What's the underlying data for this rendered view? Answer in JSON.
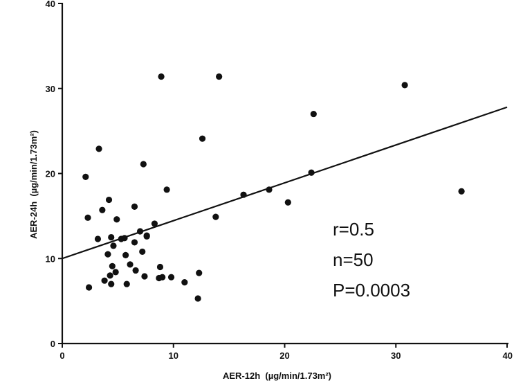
{
  "chart_data": {
    "type": "scatter",
    "xlabel": "AER-12h  (µg/min/1.73m²)",
    "ylabel": "AER-24h  (µg/min/1.73m²)",
    "xlim": [
      0,
      40
    ],
    "ylim": [
      0,
      40
    ],
    "x_ticks": [
      0,
      10,
      20,
      30,
      40
    ],
    "y_ticks": [
      0,
      10,
      20,
      30,
      40
    ],
    "grid": false,
    "series": [
      {
        "points": [
          [
            2.1,
            19.6
          ],
          [
            2.3,
            14.8
          ],
          [
            2.4,
            6.6
          ],
          [
            3.2,
            12.3
          ],
          [
            3.3,
            22.9
          ],
          [
            3.6,
            15.7
          ],
          [
            3.8,
            7.4
          ],
          [
            4.1,
            10.5
          ],
          [
            4.2,
            16.9
          ],
          [
            4.3,
            8.0
          ],
          [
            4.4,
            12.5
          ],
          [
            4.4,
            7.0
          ],
          [
            4.5,
            9.1
          ],
          [
            4.6,
            11.5
          ],
          [
            4.8,
            8.4
          ],
          [
            4.9,
            14.6
          ],
          [
            5.3,
            12.3
          ],
          [
            5.6,
            12.4
          ],
          [
            5.7,
            10.4
          ],
          [
            5.8,
            7.0
          ],
          [
            6.1,
            9.3
          ],
          [
            6.5,
            16.1
          ],
          [
            6.5,
            11.9
          ],
          [
            6.6,
            8.6
          ],
          [
            7.0,
            13.2
          ],
          [
            7.2,
            10.8
          ],
          [
            7.3,
            21.1
          ],
          [
            7.4,
            7.9
          ],
          [
            7.6,
            12.7
          ],
          [
            7.6,
            12.6
          ],
          [
            8.3,
            14.1
          ],
          [
            8.7,
            7.7
          ],
          [
            8.8,
            9.0
          ],
          [
            8.9,
            31.4
          ],
          [
            9.0,
            7.8
          ],
          [
            9.4,
            18.1
          ],
          [
            9.8,
            7.8
          ],
          [
            11.0,
            7.2
          ],
          [
            12.2,
            5.3
          ],
          [
            12.3,
            8.3
          ],
          [
            12.6,
            24.1
          ],
          [
            13.8,
            14.9
          ],
          [
            14.1,
            31.4
          ],
          [
            16.3,
            17.5
          ],
          [
            18.6,
            18.1
          ],
          [
            20.3,
            16.6
          ],
          [
            22.4,
            20.1
          ],
          [
            22.6,
            27.0
          ],
          [
            30.8,
            30.4
          ],
          [
            35.9,
            17.9
          ]
        ]
      }
    ],
    "regression_line": {
      "x": [
        0,
        40
      ],
      "y": [
        10.0,
        27.8
      ]
    },
    "annotations": [
      "r=0.5",
      "n=50",
      "P=0.0003"
    ]
  }
}
